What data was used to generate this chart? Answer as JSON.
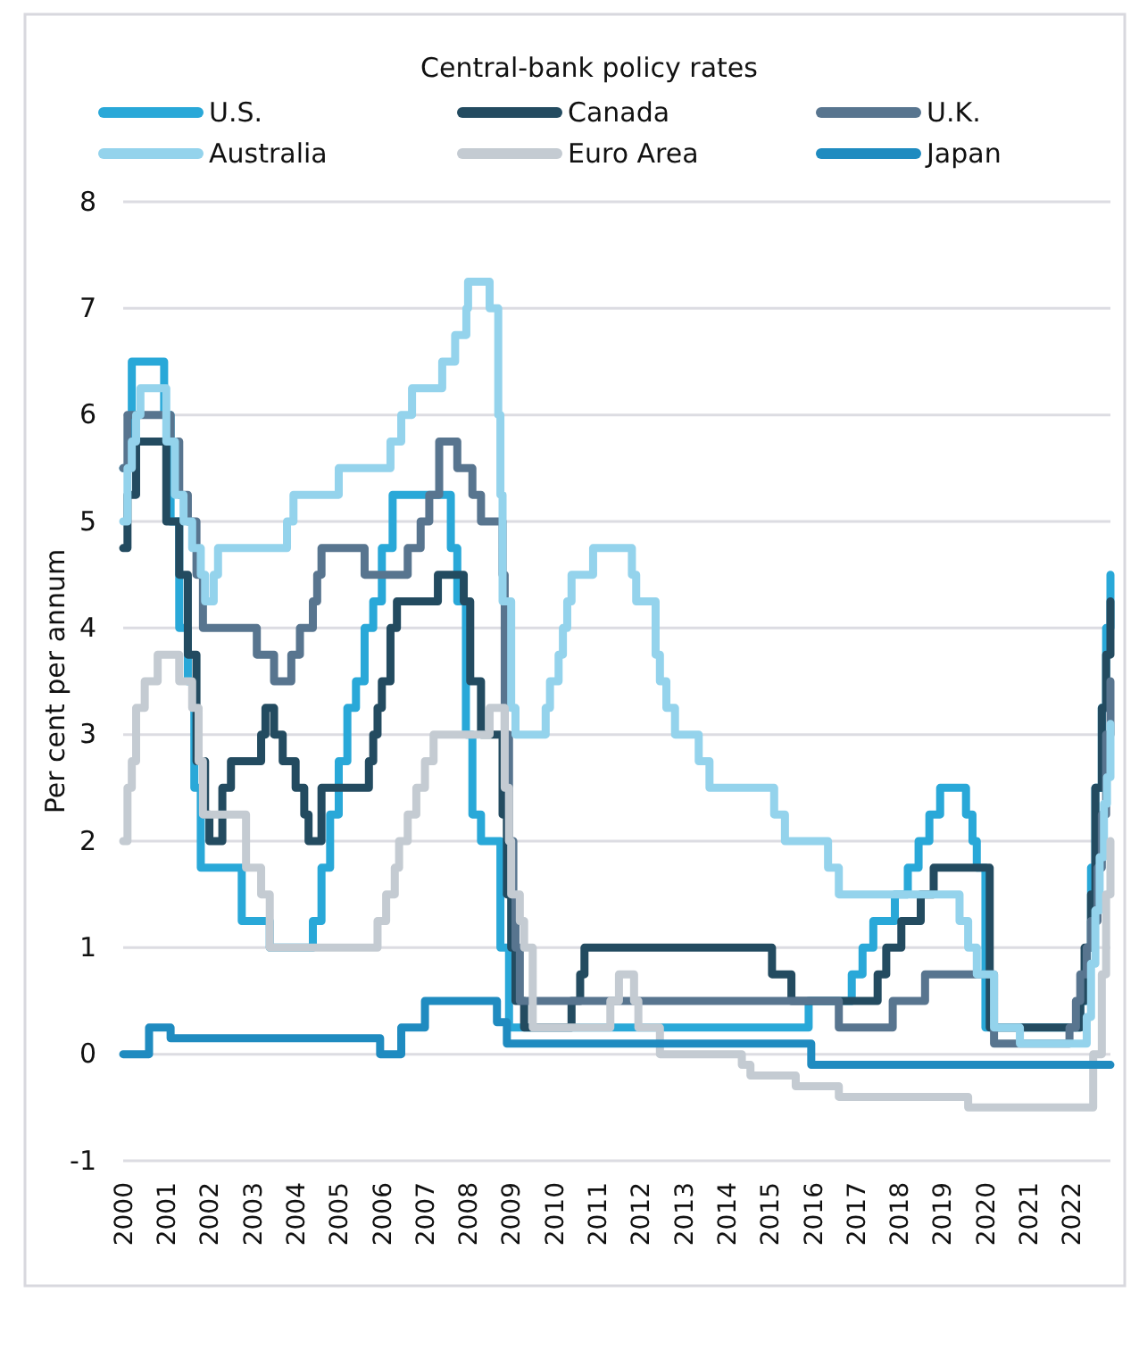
{
  "chart_data": {
    "type": "step",
    "title": "Central-bank policy rates",
    "ylabel": "Per cent per annum",
    "xlim": [
      2000,
      2022.9
    ],
    "xticks": [
      2000,
      2001,
      2002,
      2003,
      2004,
      2005,
      2006,
      2007,
      2008,
      2009,
      2010,
      2011,
      2012,
      2013,
      2014,
      2015,
      2016,
      2017,
      2018,
      2019,
      2020,
      2021,
      2022
    ],
    "ylim": [
      -1,
      8
    ],
    "yticks": [
      -1,
      0,
      1,
      2,
      3,
      4,
      5,
      6,
      7,
      8
    ],
    "grid": "y",
    "legend": "top",
    "series": [
      {
        "name": "U.S.",
        "color": "#29a8d8",
        "x": [
          2000,
          2000.2,
          2000.95,
          2001.1,
          2001.3,
          2001.5,
          2001.65,
          2001.8,
          2002.75,
          2003.4,
          2004.4,
          2004.6,
          2004.8,
          2005.0,
          2005.2,
          2005.4,
          2005.6,
          2005.8,
          2006.0,
          2006.25,
          2007.6,
          2007.75,
          2007.95,
          2008.1,
          2008.3,
          2008.75,
          2008.95,
          2015.9,
          2016.9,
          2017.15,
          2017.4,
          2017.9,
          2018.2,
          2018.45,
          2018.7,
          2018.95,
          2019.55,
          2019.7,
          2019.8,
          2020.0,
          2022.2,
          2022.35,
          2022.45,
          2022.55,
          2022.7,
          2022.8,
          2022.9
        ],
        "values": [
          5.5,
          6.5,
          6.0,
          5.0,
          4.0,
          3.5,
          2.5,
          1.75,
          1.25,
          1.0,
          1.25,
          1.75,
          2.25,
          2.75,
          3.25,
          3.5,
          4.0,
          4.25,
          4.75,
          5.25,
          4.75,
          4.25,
          3.0,
          2.25,
          2.0,
          1.0,
          0.25,
          0.5,
          0.75,
          1.0,
          1.25,
          1.5,
          1.75,
          2.0,
          2.25,
          2.5,
          2.25,
          2.0,
          1.75,
          0.25,
          0.5,
          1.0,
          1.75,
          2.5,
          3.25,
          4.0,
          4.5
        ]
      },
      {
        "name": "Canada",
        "color": "#234b60",
        "x": [
          2000,
          2000.1,
          2000.3,
          2001.0,
          2001.3,
          2001.5,
          2001.7,
          2001.9,
          2002.0,
          2002.3,
          2002.5,
          2003.2,
          2003.3,
          2003.5,
          2003.7,
          2004.0,
          2004.2,
          2004.3,
          2004.6,
          2005.7,
          2005.8,
          2005.9,
          2006.0,
          2006.2,
          2006.35,
          2007.3,
          2007.9,
          2008.05,
          2008.3,
          2008.8,
          2008.9,
          2009.0,
          2009.1,
          2009.3,
          2010.4,
          2010.6,
          2010.7,
          2015.05,
          2015.5,
          2017.5,
          2017.7,
          2018.05,
          2018.5,
          2018.8,
          2020.1,
          2022.2,
          2022.3,
          2022.45,
          2022.55,
          2022.7,
          2022.8,
          2022.9
        ],
        "values": [
          4.75,
          5.25,
          5.75,
          5.0,
          4.5,
          3.75,
          2.75,
          2.25,
          2.0,
          2.5,
          2.75,
          3.0,
          3.25,
          3.0,
          2.75,
          2.5,
          2.25,
          2.0,
          2.5,
          2.75,
          3.0,
          3.25,
          3.5,
          4.0,
          4.25,
          4.5,
          4.25,
          3.5,
          3.0,
          2.25,
          1.5,
          1.0,
          0.5,
          0.25,
          0.5,
          0.75,
          1.0,
          0.75,
          0.5,
          0.75,
          1.0,
          1.25,
          1.5,
          1.75,
          0.25,
          0.5,
          1.0,
          1.5,
          2.5,
          3.25,
          3.75,
          4.25
        ]
      },
      {
        "name": "U.K.",
        "color": "#58758f",
        "x": [
          2000,
          2000.1,
          2001.1,
          2001.3,
          2001.5,
          2001.7,
          2001.85,
          2003.1,
          2003.5,
          2003.9,
          2004.1,
          2004.4,
          2004.5,
          2004.6,
          2005.6,
          2006.6,
          2006.9,
          2007.1,
          2007.33,
          2007.75,
          2008.1,
          2008.3,
          2008.8,
          2008.85,
          2008.95,
          2009.05,
          2009.1,
          2009.2,
          2016.6,
          2017.85,
          2018.6,
          2020.2,
          2021.95,
          2022.1,
          2022.2,
          2022.35,
          2022.45,
          2022.6,
          2022.7,
          2022.8,
          2022.9
        ],
        "values": [
          5.5,
          6.0,
          5.75,
          5.25,
          5.0,
          4.5,
          4.0,
          3.75,
          3.5,
          3.75,
          4.0,
          4.25,
          4.5,
          4.75,
          4.5,
          4.75,
          5.0,
          5.25,
          5.75,
          5.5,
          5.25,
          5.0,
          4.5,
          3.0,
          2.0,
          1.5,
          1.0,
          0.5,
          0.25,
          0.5,
          0.75,
          0.1,
          0.25,
          0.5,
          0.75,
          1.0,
          1.25,
          1.75,
          2.25,
          3.0,
          3.5
        ]
      },
      {
        "name": "Australia",
        "color": "#94d3ec",
        "x": [
          2000,
          2000.1,
          2000.2,
          2000.3,
          2000.4,
          2001.0,
          2001.2,
          2001.4,
          2001.6,
          2001.8,
          2001.9,
          2002.1,
          2002.2,
          2003.8,
          2003.95,
          2005.0,
          2006.2,
          2006.45,
          2006.7,
          2007.4,
          2007.7,
          2007.96,
          2008.0,
          2008.5,
          2008.7,
          2008.75,
          2008.8,
          2009.0,
          2009.1,
          2009.8,
          2009.9,
          2010.1,
          2010.2,
          2010.3,
          2010.4,
          2010.9,
          2011.8,
          2011.9,
          2012.35,
          2012.45,
          2012.6,
          2012.8,
          2013.35,
          2013.6,
          2015.1,
          2015.35,
          2016.35,
          2016.6,
          2019.4,
          2019.6,
          2019.8,
          2020.2,
          2020.8,
          2022.35,
          2022.45,
          2022.55,
          2022.65,
          2022.75,
          2022.82,
          2022.9
        ],
        "values": [
          5.0,
          5.5,
          5.75,
          6.0,
          6.25,
          5.75,
          5.25,
          5.0,
          4.75,
          4.5,
          4.25,
          4.5,
          4.75,
          5.0,
          5.25,
          5.5,
          5.75,
          6.0,
          6.25,
          6.5,
          6.75,
          7.0,
          7.25,
          7.0,
          6.0,
          5.25,
          4.25,
          3.25,
          3.0,
          3.25,
          3.5,
          3.75,
          4.0,
          4.25,
          4.5,
          4.75,
          4.5,
          4.25,
          3.75,
          3.5,
          3.25,
          3.0,
          2.75,
          2.5,
          2.25,
          2.0,
          1.75,
          1.5,
          1.25,
          1.0,
          0.75,
          0.25,
          0.1,
          0.35,
          0.85,
          1.35,
          1.85,
          2.35,
          2.6,
          3.1
        ]
      },
      {
        "name": "Euro Area",
        "color": "#c4cbd2",
        "x": [
          2000,
          2000.1,
          2000.2,
          2000.3,
          2000.5,
          2000.8,
          2001.3,
          2001.6,
          2001.75,
          2001.85,
          2002.85,
          2003.2,
          2003.4,
          2005.9,
          2006.1,
          2006.3,
          2006.4,
          2006.6,
          2006.8,
          2007.0,
          2007.2,
          2008.5,
          2008.85,
          2008.95,
          2009.0,
          2009.2,
          2009.3,
          2009.5,
          2011.3,
          2011.5,
          2011.85,
          2011.95,
          2012.45,
          2014.35,
          2014.55,
          2015.6,
          2016.6,
          2019.6,
          2022.5,
          2022.7,
          2022.8,
          2022.9
        ],
        "values": [
          2.0,
          2.5,
          2.75,
          3.25,
          3.5,
          3.75,
          3.5,
          3.25,
          2.75,
          2.25,
          1.75,
          1.5,
          1.0,
          1.25,
          1.5,
          1.75,
          2.0,
          2.25,
          2.5,
          2.75,
          3.0,
          3.25,
          2.5,
          2.0,
          1.5,
          1.25,
          1.0,
          0.25,
          0.5,
          0.75,
          0.5,
          0.25,
          0.0,
          -0.1,
          -0.2,
          -0.3,
          -0.4,
          -0.5,
          0.0,
          0.75,
          1.5,
          2.0
        ]
      },
      {
        "name": "Japan",
        "color": "#1f8bc0",
        "x": [
          2000,
          2000.6,
          2001.1,
          2005.96,
          2006.45,
          2007.0,
          2008.67,
          2008.9,
          2015.96,
          2022.9
        ],
        "values": [
          0.0,
          0.25,
          0.15,
          0.0,
          0.25,
          0.5,
          0.3,
          0.1,
          -0.1,
          -0.1
        ]
      }
    ]
  }
}
